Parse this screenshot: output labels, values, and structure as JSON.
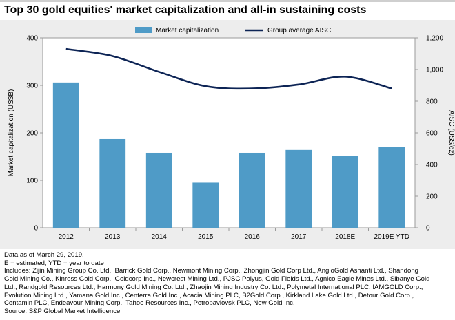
{
  "title": "Top 30 gold equities' market capitalization and all-in sustaining costs",
  "chart_data": {
    "type": "bar+line",
    "categories": [
      "2012",
      "2013",
      "2014",
      "2015",
      "2016",
      "2017",
      "2018E",
      "2019E YTD"
    ],
    "series": [
      {
        "name": "Market capitalization",
        "type": "bar",
        "axis": "left",
        "values": [
          306,
          187,
          158,
          95,
          158,
          164,
          151,
          171
        ],
        "color": "#4f9bc7"
      },
      {
        "name": "Group average AISC",
        "type": "line",
        "axis": "right",
        "values": [
          1130,
          1085,
          985,
          895,
          880,
          905,
          955,
          880
        ],
        "color": "#0d2455"
      }
    ],
    "ylabel": "Market capitalization (US$B)",
    "y2label": "AISC (US$/oz)",
    "ylim": [
      0,
      400
    ],
    "y2lim": [
      0,
      1200
    ],
    "yticks": [
      "0",
      "100",
      "200",
      "300",
      "400"
    ],
    "y2ticks": [
      "0",
      "200",
      "400",
      "600",
      "800",
      "1,000",
      "1,200"
    ],
    "legend_position": "top",
    "grid": false
  },
  "notes": [
    "Data as of March 29, 2019.",
    "E = estimated; YTD = year to date",
    "Includes: Zijin Mining Group Co. Ltd., Barrick Gold Corp., Newmont Mining Corp., Zhongjin Gold Corp Ltd., AngloGold Ashanti Ltd., Shandong",
    "Gold Mining Co., Kinross Gold Corp., Goldcorp Inc., Newcrest Mining Ltd., PJSC Polyus, Gold Fields Ltd., Agnico Eagle Mines Ltd., Sibanye Gold",
    "Ltd., Randgold Resources Ltd., Harmony Gold Mining Co. Ltd., Zhaojin Mining Industry Co. Ltd., Polymetal International PLC, IAMGOLD Corp.,",
    "Evolution Mining Ltd., Yamana Gold Inc., Centerra Gold Inc., Acacia Mining PLC, B2Gold Corp., Kirkland Lake Gold Ltd., Detour Gold Corp.,",
    "Centamin PLC, Endeavour Mining Corp., Tahoe Resources Inc., Petropavlovsk PLC, New Gold Inc.",
    "Source: S&P Global Market Intelligence"
  ]
}
